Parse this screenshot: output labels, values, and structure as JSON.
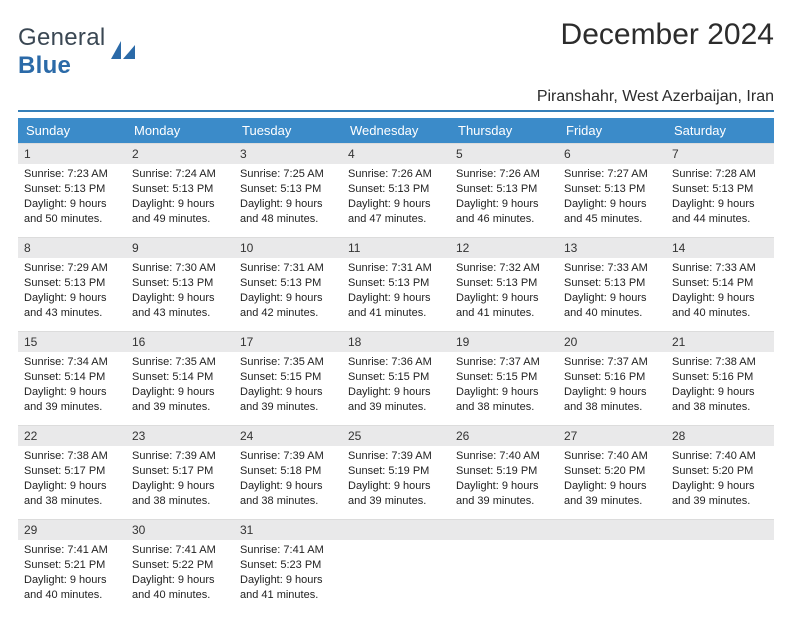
{
  "logo": {
    "word1": "General",
    "word2": "Blue"
  },
  "title": "December 2024",
  "subtitle": "Piranshahr, West Azerbaijan, Iran",
  "colors": {
    "header_blue": "#3b8bc9",
    "underline_blue": "#357fb8",
    "logo_blue": "#2b6aa8",
    "logo_dark": "#3a4753",
    "daynum_gray": "#e9e9ea",
    "text_dark": "#232323"
  },
  "calendar": {
    "type": "table",
    "columns": [
      "Sunday",
      "Monday",
      "Tuesday",
      "Wednesday",
      "Thursday",
      "Friday",
      "Saturday"
    ],
    "weeks": [
      [
        {
          "n": 1,
          "sr": "7:23 AM",
          "ss": "5:13 PM",
          "dl": "9 hours and 50 minutes."
        },
        {
          "n": 2,
          "sr": "7:24 AM",
          "ss": "5:13 PM",
          "dl": "9 hours and 49 minutes."
        },
        {
          "n": 3,
          "sr": "7:25 AM",
          "ss": "5:13 PM",
          "dl": "9 hours and 48 minutes."
        },
        {
          "n": 4,
          "sr": "7:26 AM",
          "ss": "5:13 PM",
          "dl": "9 hours and 47 minutes."
        },
        {
          "n": 5,
          "sr": "7:26 AM",
          "ss": "5:13 PM",
          "dl": "9 hours and 46 minutes."
        },
        {
          "n": 6,
          "sr": "7:27 AM",
          "ss": "5:13 PM",
          "dl": "9 hours and 45 minutes."
        },
        {
          "n": 7,
          "sr": "7:28 AM",
          "ss": "5:13 PM",
          "dl": "9 hours and 44 minutes."
        }
      ],
      [
        {
          "n": 8,
          "sr": "7:29 AM",
          "ss": "5:13 PM",
          "dl": "9 hours and 43 minutes."
        },
        {
          "n": 9,
          "sr": "7:30 AM",
          "ss": "5:13 PM",
          "dl": "9 hours and 43 minutes."
        },
        {
          "n": 10,
          "sr": "7:31 AM",
          "ss": "5:13 PM",
          "dl": "9 hours and 42 minutes."
        },
        {
          "n": 11,
          "sr": "7:31 AM",
          "ss": "5:13 PM",
          "dl": "9 hours and 41 minutes."
        },
        {
          "n": 12,
          "sr": "7:32 AM",
          "ss": "5:13 PM",
          "dl": "9 hours and 41 minutes."
        },
        {
          "n": 13,
          "sr": "7:33 AM",
          "ss": "5:13 PM",
          "dl": "9 hours and 40 minutes."
        },
        {
          "n": 14,
          "sr": "7:33 AM",
          "ss": "5:14 PM",
          "dl": "9 hours and 40 minutes."
        }
      ],
      [
        {
          "n": 15,
          "sr": "7:34 AM",
          "ss": "5:14 PM",
          "dl": "9 hours and 39 minutes."
        },
        {
          "n": 16,
          "sr": "7:35 AM",
          "ss": "5:14 PM",
          "dl": "9 hours and 39 minutes."
        },
        {
          "n": 17,
          "sr": "7:35 AM",
          "ss": "5:15 PM",
          "dl": "9 hours and 39 minutes."
        },
        {
          "n": 18,
          "sr": "7:36 AM",
          "ss": "5:15 PM",
          "dl": "9 hours and 39 minutes."
        },
        {
          "n": 19,
          "sr": "7:37 AM",
          "ss": "5:15 PM",
          "dl": "9 hours and 38 minutes."
        },
        {
          "n": 20,
          "sr": "7:37 AM",
          "ss": "5:16 PM",
          "dl": "9 hours and 38 minutes."
        },
        {
          "n": 21,
          "sr": "7:38 AM",
          "ss": "5:16 PM",
          "dl": "9 hours and 38 minutes."
        }
      ],
      [
        {
          "n": 22,
          "sr": "7:38 AM",
          "ss": "5:17 PM",
          "dl": "9 hours and 38 minutes."
        },
        {
          "n": 23,
          "sr": "7:39 AM",
          "ss": "5:17 PM",
          "dl": "9 hours and 38 minutes."
        },
        {
          "n": 24,
          "sr": "7:39 AM",
          "ss": "5:18 PM",
          "dl": "9 hours and 38 minutes."
        },
        {
          "n": 25,
          "sr": "7:39 AM",
          "ss": "5:19 PM",
          "dl": "9 hours and 39 minutes."
        },
        {
          "n": 26,
          "sr": "7:40 AM",
          "ss": "5:19 PM",
          "dl": "9 hours and 39 minutes."
        },
        {
          "n": 27,
          "sr": "7:40 AM",
          "ss": "5:20 PM",
          "dl": "9 hours and 39 minutes."
        },
        {
          "n": 28,
          "sr": "7:40 AM",
          "ss": "5:20 PM",
          "dl": "9 hours and 39 minutes."
        }
      ],
      [
        {
          "n": 29,
          "sr": "7:41 AM",
          "ss": "5:21 PM",
          "dl": "9 hours and 40 minutes."
        },
        {
          "n": 30,
          "sr": "7:41 AM",
          "ss": "5:22 PM",
          "dl": "9 hours and 40 minutes."
        },
        {
          "n": 31,
          "sr": "7:41 AM",
          "ss": "5:23 PM",
          "dl": "9 hours and 41 minutes."
        },
        null,
        null,
        null,
        null
      ]
    ],
    "labels": {
      "sunrise": "Sunrise:",
      "sunset": "Sunset:",
      "daylight": "Daylight:"
    },
    "style": {
      "header_fontsize": 13,
      "body_fontsize": 11,
      "daynum_fontsize": 12,
      "title_fontsize": 30,
      "subtitle_fontsize": 16,
      "cell_min_height": 94,
      "grid_cols": 7
    }
  }
}
